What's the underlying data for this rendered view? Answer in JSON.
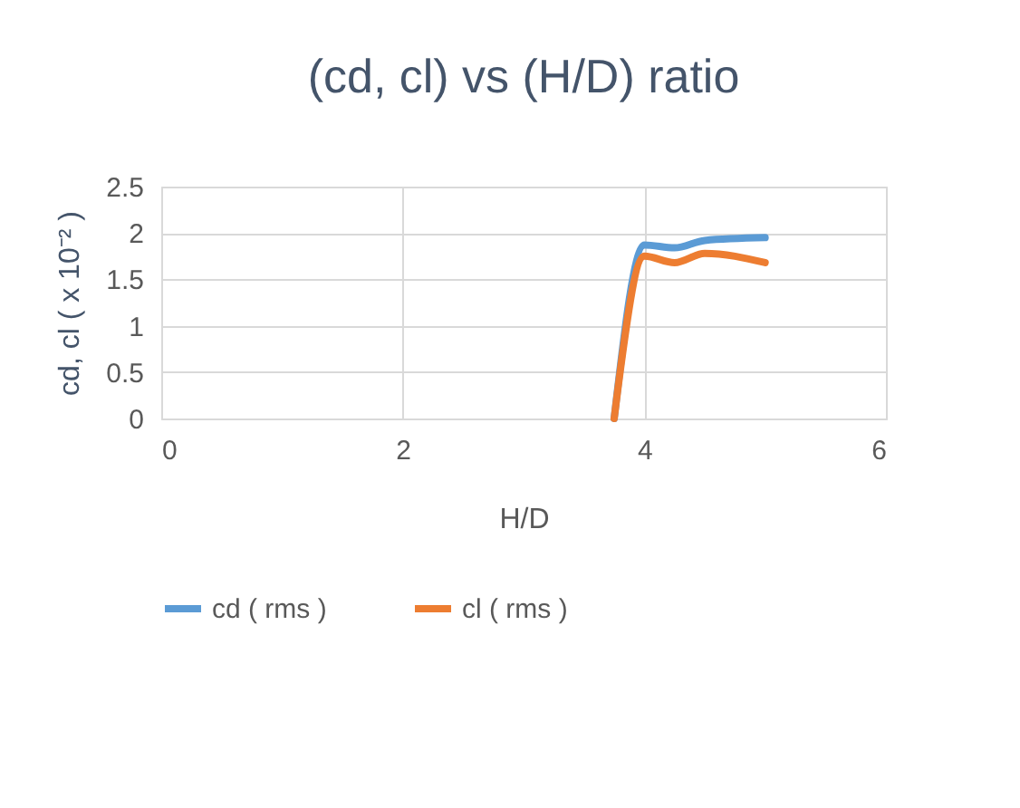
{
  "chart_data": {
    "type": "line",
    "title": "(cd, cl)  vs  (H/D) ratio",
    "xlabel": "H/D",
    "ylabel": "cd, cl ( x 10⁻² )",
    "x": [
      3.75,
      4.0,
      4.25,
      4.5,
      5.0
    ],
    "series": [
      {
        "name": "cd ( rms )",
        "color": "#5b9bd5",
        "values": [
          0,
          1.87,
          1.84,
          1.92,
          1.95
        ]
      },
      {
        "name": "cl ( rms )",
        "color": "#ed7d31",
        "values": [
          0,
          1.75,
          1.68,
          1.78,
          1.68
        ]
      }
    ],
    "xlim": [
      0,
      6
    ],
    "xticks": [
      0,
      2,
      4,
      6
    ],
    "ylim": [
      0,
      2.5
    ],
    "yticks": [
      0,
      0.5,
      1,
      1.5,
      2,
      2.5
    ],
    "grid": true,
    "legend": "bottom",
    "marker": "none",
    "line_style": "solid"
  }
}
